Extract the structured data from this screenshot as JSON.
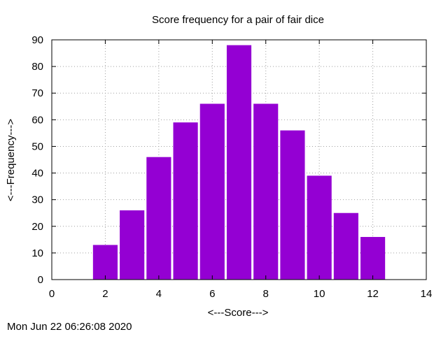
{
  "chart_data": {
    "type": "bar",
    "title": "Score frequency for a pair of fair dice",
    "xlabel": "<---Score--->",
    "ylabel": "<---Frequency--->",
    "x": [
      2,
      3,
      4,
      5,
      6,
      7,
      8,
      9,
      10,
      11,
      12
    ],
    "values": [
      13,
      26,
      46,
      59,
      66,
      88,
      66,
      56,
      39,
      25,
      16
    ],
    "xlim": [
      0,
      14
    ],
    "ylim": [
      0,
      90
    ],
    "xticks": [
      0,
      2,
      4,
      6,
      8,
      10,
      12,
      14
    ],
    "yticks": [
      0,
      10,
      20,
      30,
      40,
      50,
      60,
      70,
      80,
      90
    ],
    "grid": true,
    "bar_color": "#9400d3"
  },
  "timestamp": "Mon Jun 22 06:26:08 2020"
}
